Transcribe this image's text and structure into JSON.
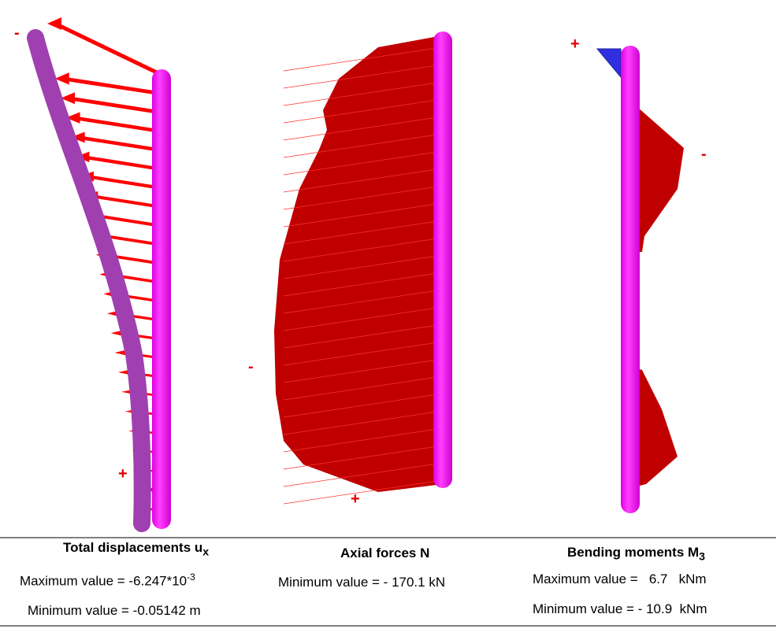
{
  "panels": [
    {
      "signs": [
        "-",
        "+"
      ],
      "title": "Total displacements u",
      "title_sub": "x",
      "lines": [
        {
          "text": "Maximum value = -6.247*10",
          "sup": "-3"
        },
        {
          "text": "Minimum value = -0.05142 m"
        }
      ]
    },
    {
      "signs": [
        "-",
        "+"
      ],
      "title": "Axial forces N",
      "lines": [
        {
          "text": "Minimum value = - 170.1 kN"
        }
      ]
    },
    {
      "signs": [
        "+",
        "-"
      ],
      "title": "Bending moments M",
      "title_sub": "3",
      "lines": [
        {
          "text": "Maximum value =   6.7   kNm"
        },
        {
          "text": "Minimum value = - 10.9  kNm"
        }
      ]
    }
  ]
}
